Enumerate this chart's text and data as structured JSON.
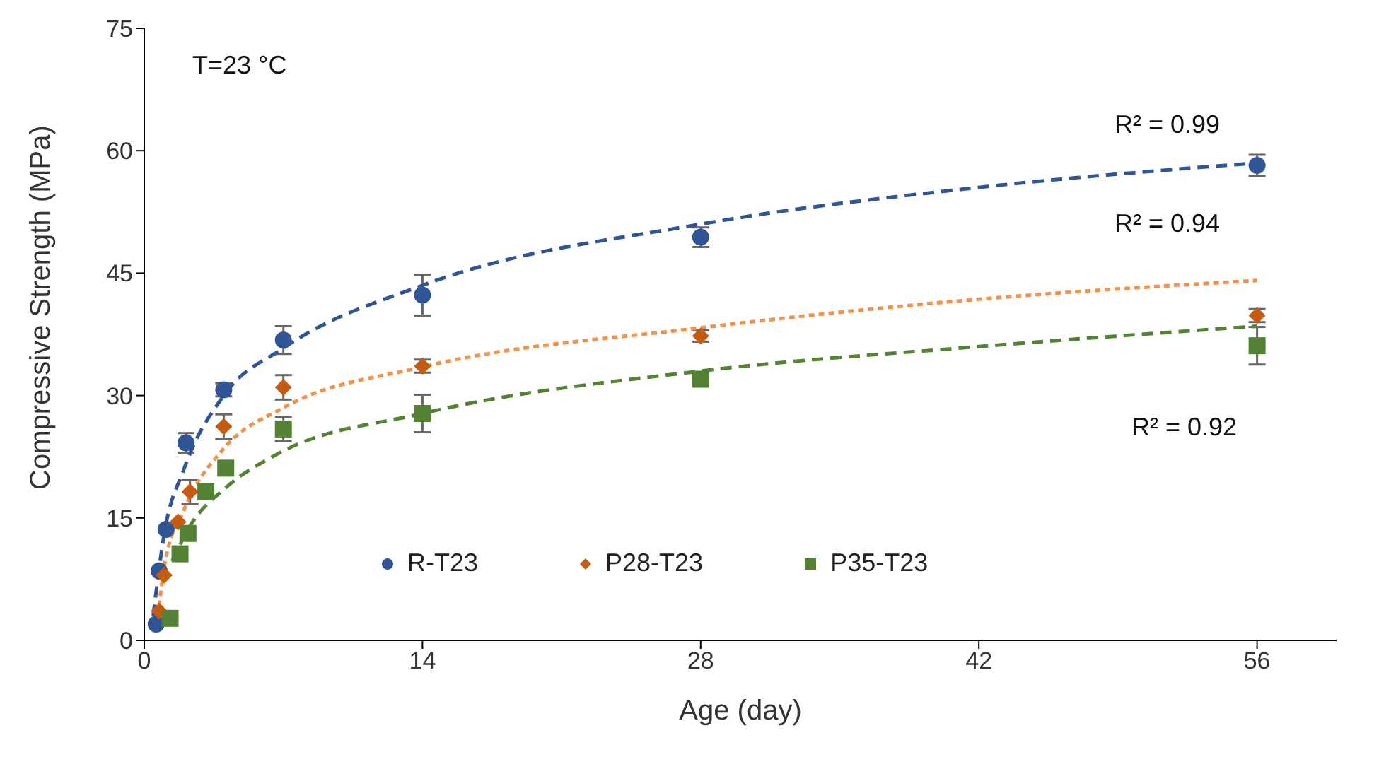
{
  "chart_data": {
    "type": "scatter",
    "xlabel": "Age (day)",
    "ylabel": "Compressive Strength (MPa)",
    "xlim": [
      0,
      60
    ],
    "xticks": [
      0,
      14,
      28,
      42,
      56
    ],
    "ylim": [
      0,
      75
    ],
    "yticks": [
      0,
      15,
      30,
      45,
      60,
      75
    ],
    "legend": "bottom",
    "annotations": [
      "T=23 °C",
      "R² = 0.99",
      "R² = 0.94",
      "R² = 0.92"
    ],
    "series": [
      {
        "name": "R-T23",
        "marker": "circle",
        "color": "#2f5597",
        "x": [
          0.6,
          0.75,
          1.1,
          2.1,
          4,
          7,
          14,
          28,
          56
        ],
        "values": [
          2.0,
          8.5,
          13.6,
          24.2,
          30.7,
          36.8,
          42.3,
          49.4,
          58.2
        ],
        "errors": [
          null,
          null,
          null,
          1.2,
          0.8,
          1.7,
          2.5,
          1.2,
          1.3
        ]
      },
      {
        "name": "P28-T23",
        "marker": "diamond",
        "color": "#c55a11",
        "x": [
          0.75,
          1,
          1.7,
          2.3,
          4,
          7,
          14,
          28,
          56
        ],
        "values": [
          3.6,
          8.0,
          14.5,
          18.2,
          26.2,
          31.0,
          33.6,
          37.3,
          39.8
        ],
        "errors": [
          null,
          null,
          null,
          1.5,
          1.5,
          1.5,
          0.8,
          0.7,
          0.8
        ]
      },
      {
        "name": "P35-T23",
        "marker": "square",
        "color": "#548235",
        "x": [
          1.3,
          1.8,
          2.2,
          3.1,
          4.1,
          7,
          14,
          28,
          56
        ],
        "values": [
          2.7,
          10.6,
          13.1,
          18.2,
          21.1,
          25.9,
          27.8,
          32.0,
          36.1
        ],
        "errors": [
          null,
          null,
          null,
          null,
          null,
          1.5,
          2.3,
          0.8,
          2.3
        ]
      },
      {
        "type": "line",
        "line_style": "dashed",
        "color": "#2f5597",
        "x": [
          0.45,
          1,
          2,
          4,
          7,
          14,
          28,
          42,
          56
        ],
        "values": [
          3,
          13,
          21,
          30,
          35.8,
          43.5,
          51,
          55.5,
          58.5
        ]
      },
      {
        "type": "line",
        "line_style": "dotted",
        "color": "#f4914a",
        "x": [
          0.7,
          1,
          2,
          4,
          7,
          14,
          28,
          42,
          56
        ],
        "values": [
          3,
          9,
          16,
          23.5,
          28.5,
          33.5,
          38.3,
          41.8,
          44.1
        ]
      },
      {
        "type": "line",
        "line_style": "dashed",
        "color": "#548235",
        "x": [
          1.4,
          2.3,
          4.1,
          6.6,
          14,
          28,
          42,
          56
        ],
        "values": [
          9.7,
          14,
          18.7,
          22.7,
          27.8,
          33,
          36,
          38.5
        ]
      }
    ]
  }
}
